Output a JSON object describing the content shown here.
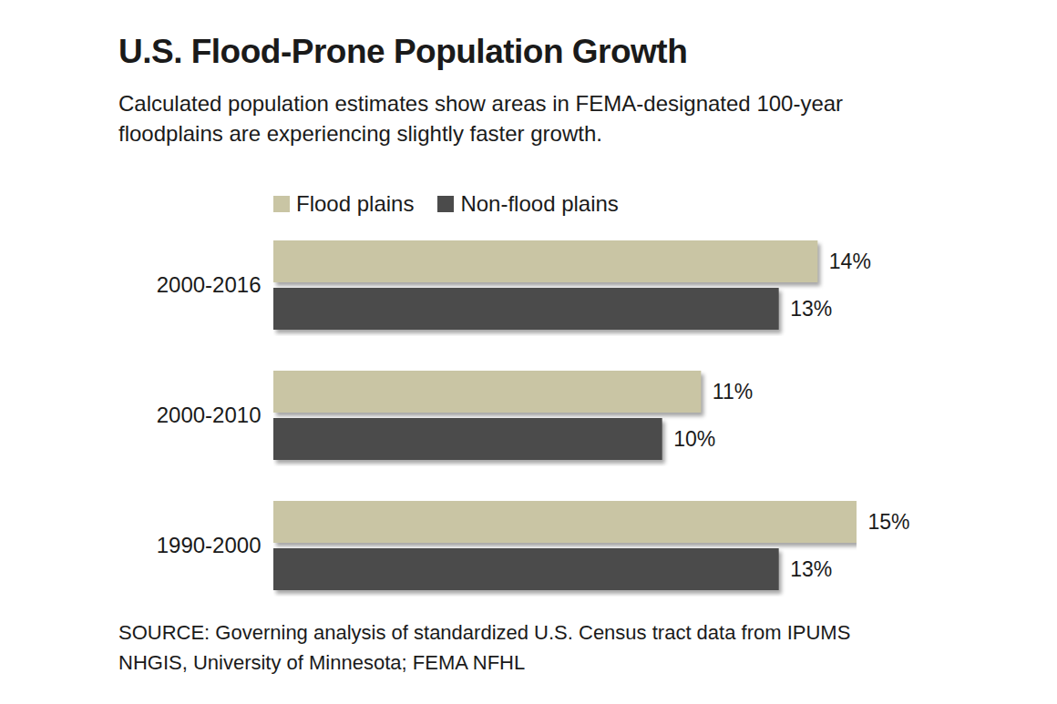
{
  "chart_data": {
    "type": "bar",
    "orientation": "horizontal",
    "title": "U.S. Flood-Prone Population Growth",
    "subtitle": "Calculated population estimates show areas in FEMA-designated 100-year floodplains are experiencing slightly faster growth.",
    "source": "SOURCE: Governing analysis of standardized U.S. Census tract data from IPUMS NHGIS, University of Minnesota; FEMA NFHL",
    "categories": [
      "2000-2016",
      "2000-2010",
      "1990-2000"
    ],
    "series": [
      {
        "name": "Flood plains",
        "color": "#c9c5a4",
        "values": [
          14,
          11,
          15
        ],
        "value_labels": [
          "14%",
          "11%",
          "15%"
        ]
      },
      {
        "name": "Non-flood plains",
        "color": "#4b4b4b",
        "values": [
          13,
          10,
          13
        ],
        "value_labels": [
          "13%",
          "10%",
          "13%"
        ]
      }
    ],
    "xlim": [
      0,
      15
    ],
    "data_labels": true,
    "tick_labels": "y",
    "legend": "top",
    "grid": false
  }
}
